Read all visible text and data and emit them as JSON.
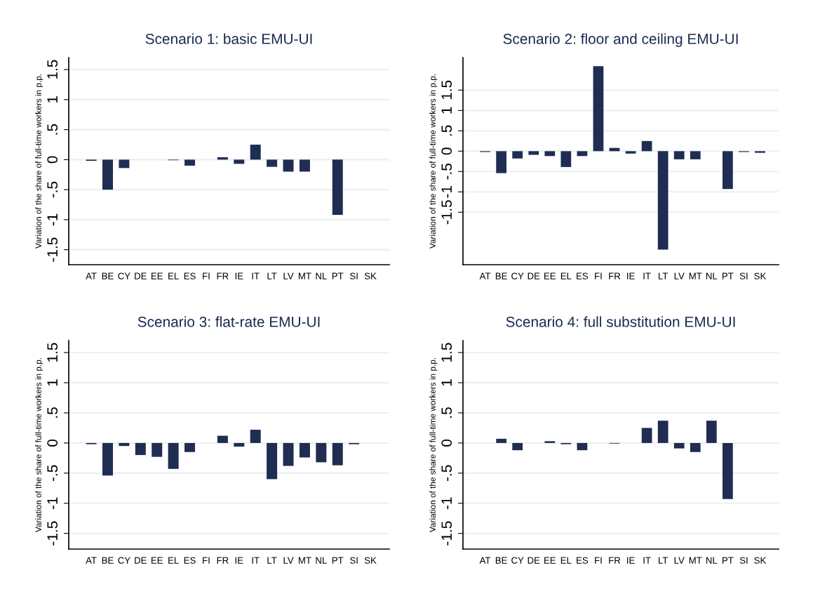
{
  "chart_data": [
    {
      "type": "bar",
      "title": "Scenario 1: basic EMU-UI",
      "ylabel": "Variation of the share of full-time workers in p.p.",
      "categories": [
        "AT",
        "BE",
        "CY",
        "DE",
        "EE",
        "EL",
        "ES",
        "FI",
        "FR",
        "IE",
        "IT",
        "LT",
        "LV",
        "MT",
        "NL",
        "PT",
        "SI",
        "SK"
      ],
      "color": "#1f2d52",
      "values": [
        -0.02,
        -0.5,
        -0.14,
        0,
        0,
        -0.01,
        -0.1,
        0,
        0.04,
        -0.07,
        0.25,
        -0.12,
        -0.2,
        -0.2,
        0,
        -0.92,
        0,
        0
      ],
      "ylim": [
        -1.75,
        1.7
      ],
      "yticks": [
        {
          "value": -1.5,
          "label": "-1.5"
        },
        {
          "value": -1,
          "label": "-1"
        },
        {
          "value": -0.5,
          "label": "-.5"
        },
        {
          "value": 0,
          "label": "0"
        },
        {
          "value": 0.5,
          "label": ".5"
        },
        {
          "value": 1,
          "label": "1"
        },
        {
          "value": 1.5,
          "label": "1.5"
        }
      ],
      "grid": "y"
    },
    {
      "type": "bar",
      "title": "Scenario 2: floor and ceiling EMU-UI",
      "ylabel": "Variation of the share of full-time workers in p.p.",
      "categories": [
        "AT",
        "BE",
        "CY",
        "DE",
        "EE",
        "EL",
        "ES",
        "FI",
        "FR",
        "IE",
        "IT",
        "LT",
        "LV",
        "MT",
        "NL",
        "PT",
        "SI",
        "SK"
      ],
      "color": "#1f2d52",
      "values": [
        -0.02,
        -0.54,
        -0.18,
        -0.09,
        -0.12,
        -0.39,
        -0.12,
        2.09,
        0.08,
        -0.06,
        0.25,
        -2.42,
        -0.2,
        -0.2,
        0,
        -0.93,
        -0.02,
        -0.04
      ],
      "ylim": [
        -2.79,
        2.3
      ],
      "yticks": [
        {
          "value": -1.5,
          "label": "-1.5"
        },
        {
          "value": -1,
          "label": "-1"
        },
        {
          "value": -0.5,
          "label": "-.5"
        },
        {
          "value": 0,
          "label": "0"
        },
        {
          "value": 0.5,
          "label": ".5"
        },
        {
          "value": 1,
          "label": "1"
        },
        {
          "value": 1.5,
          "label": "1.5"
        }
      ],
      "grid": "y"
    },
    {
      "type": "bar",
      "title": "Scenario 3: flat-rate EMU-UI",
      "ylabel": "Variation of the share of full-time workers in p.p.",
      "categories": [
        "AT",
        "BE",
        "CY",
        "DE",
        "EE",
        "EL",
        "ES",
        "FI",
        "FR",
        "IE",
        "IT",
        "LT",
        "LV",
        "MT",
        "NL",
        "PT",
        "SI",
        "SK"
      ],
      "color": "#1f2d52",
      "values": [
        -0.02,
        -0.54,
        -0.05,
        -0.2,
        -0.23,
        -0.43,
        -0.15,
        0,
        0.12,
        -0.06,
        0.22,
        -0.6,
        -0.38,
        -0.24,
        -0.32,
        -0.37,
        -0.02,
        0
      ],
      "ylim": [
        -1.76,
        1.7
      ],
      "yticks": [
        {
          "value": -1.5,
          "label": "-1.5"
        },
        {
          "value": -1,
          "label": "-1"
        },
        {
          "value": -0.5,
          "label": "-.5"
        },
        {
          "value": 0,
          "label": "0"
        },
        {
          "value": 0.5,
          "label": ".5"
        },
        {
          "value": 1,
          "label": "1"
        },
        {
          "value": 1.5,
          "label": "1.5"
        }
      ],
      "grid": "y"
    },
    {
      "type": "bar",
      "title": "Scenario 4: full substitution EMU-UI",
      "ylabel": "Variation of the share of full-time workers in p.p.",
      "categories": [
        "AT",
        "BE",
        "CY",
        "DE",
        "EE",
        "EL",
        "ES",
        "FI",
        "FR",
        "IE",
        "IT",
        "LT",
        "LV",
        "MT",
        "NL",
        "PT",
        "SI",
        "SK"
      ],
      "color": "#1f2d52",
      "values": [
        0,
        0.07,
        -0.12,
        0,
        0.03,
        -0.02,
        -0.12,
        0,
        -0.01,
        0,
        0.25,
        0.37,
        -0.09,
        -0.15,
        0.37,
        -0.93,
        0,
        0
      ],
      "ylim": [
        -1.76,
        1.7
      ],
      "yticks": [
        {
          "value": -1.5,
          "label": "-1.5"
        },
        {
          "value": -1,
          "label": "-1"
        },
        {
          "value": -0.5,
          "label": "-.5"
        },
        {
          "value": 0,
          "label": "0"
        },
        {
          "value": 0.5,
          "label": ".5"
        },
        {
          "value": 1,
          "label": "1"
        },
        {
          "value": 1.5,
          "label": "1.5"
        }
      ],
      "grid": "y"
    }
  ]
}
